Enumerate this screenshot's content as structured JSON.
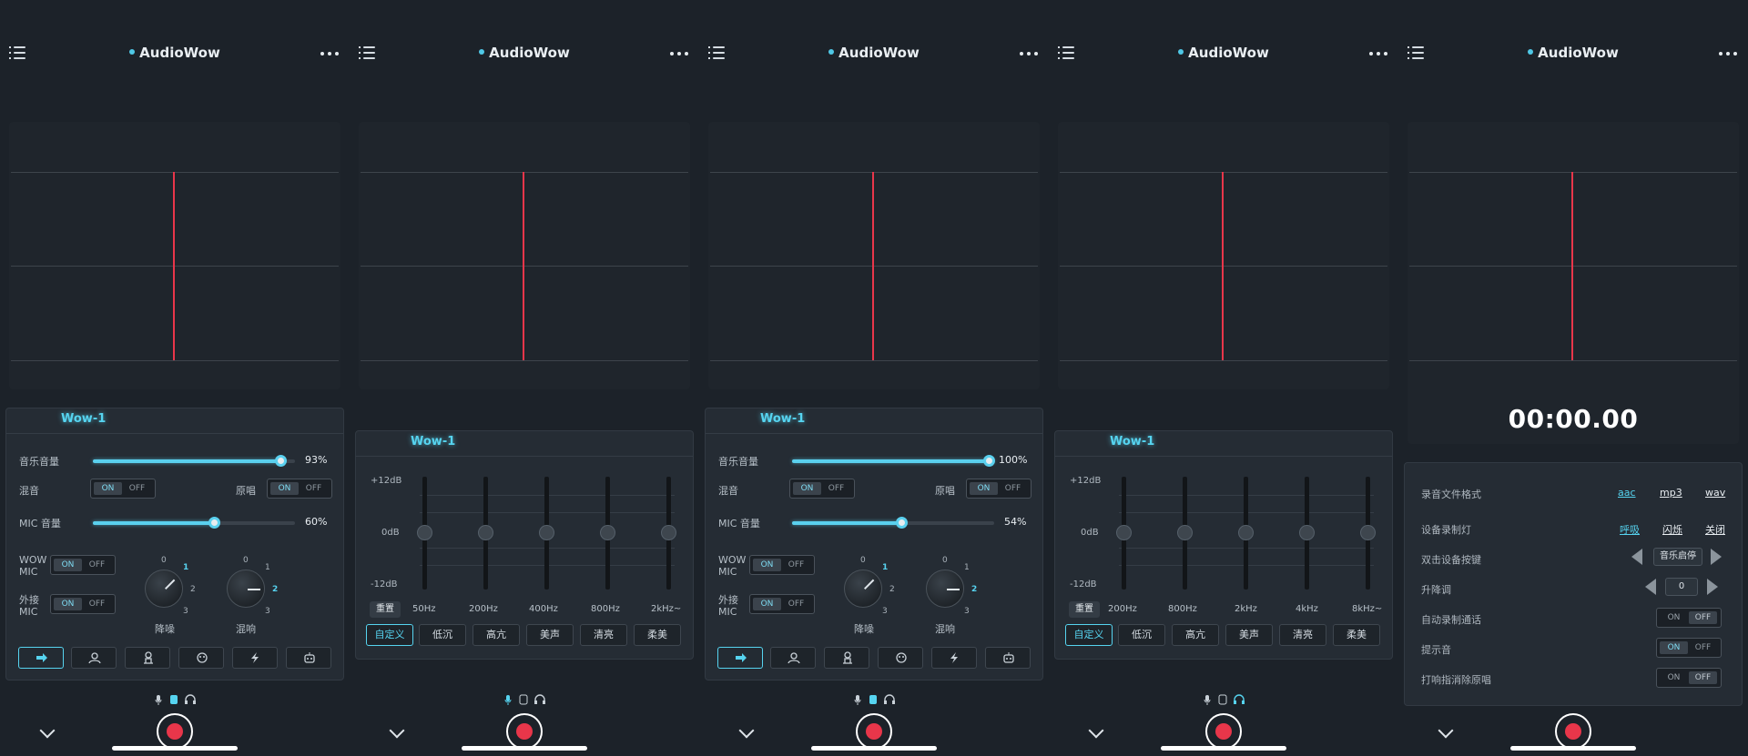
{
  "app": {
    "title": "AudioWow"
  },
  "panel": {
    "tab": "Wow-1"
  },
  "mixer": {
    "music_volume_label": "音乐音量",
    "mix_label": "混音",
    "original_label": "原唱",
    "mic_volume_label": "MIC 音量",
    "wow_mic_label": "WOW MIC",
    "ext_mic_label": "外接 MIC",
    "noise_label": "降噪",
    "reverb_label": "混响",
    "on": "ON",
    "off": "OFF",
    "knob_ticks": [
      "0",
      "1",
      "2",
      "3"
    ]
  },
  "screen1": {
    "music_volume": "93%",
    "music_volume_level": 0.93,
    "mic_volume": "60%",
    "mic_volume_level": 0.6
  },
  "screen3": {
    "music_volume": "100%",
    "music_volume_level": 1.0,
    "mic_volume": "54%",
    "mic_volume_level": 0.54
  },
  "eq": {
    "db_top": "+12dB",
    "db_mid": "0dB",
    "db_bottom": "-12dB",
    "reset": "重置",
    "freqs_a": [
      "50Hz",
      "200Hz",
      "400Hz",
      "800Hz",
      "2kHz~"
    ],
    "freqs_b": [
      "200Hz",
      "800Hz",
      "2kHz",
      "4kHz",
      "8kHz~"
    ],
    "presets": [
      "自定义",
      "低沉",
      "高亢",
      "美声",
      "清亮",
      "柔美"
    ]
  },
  "recorder": {
    "timer": "00:00.00",
    "format_label": "录音文件格式",
    "formats": [
      "aac",
      "mp3",
      "wav"
    ],
    "light_label": "设备录制灯",
    "lights": [
      "呼吸",
      "闪烁",
      "关闭"
    ],
    "double_tap_label": "双击设备按键",
    "double_tap_value": "音乐启停",
    "pitch_label": "升降调",
    "pitch_value": "0",
    "auto_record_label": "自动录制通话",
    "prompt_label": "提示音",
    "finger_label": "打响指消除原唱"
  },
  "colors": {
    "accent": "#56d4f0",
    "record": "#e8364a",
    "background": "#1c2229"
  }
}
